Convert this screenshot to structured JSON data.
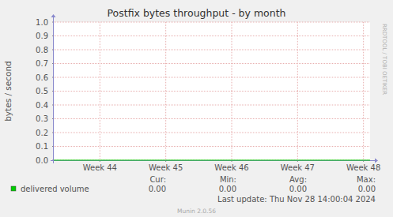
{
  "chart_data": {
    "type": "line",
    "title": "Postfix bytes throughput - by month",
    "y_label": "bytes / second",
    "x": [
      43.3,
      44,
      45,
      46,
      47,
      48,
      48.1
    ],
    "xlim": [
      43.3,
      48.1
    ],
    "xticks": [
      {
        "value": 44,
        "label": "Week 44"
      },
      {
        "value": 45,
        "label": "Week 45"
      },
      {
        "value": 46,
        "label": "Week 46"
      },
      {
        "value": 47,
        "label": "Week 47"
      },
      {
        "value": 48,
        "label": "Week 48"
      }
    ],
    "ylim": [
      0,
      1
    ],
    "yticks": [
      {
        "value": 0,
        "label": "0.0"
      },
      0.1,
      0.2,
      0.3,
      0.4,
      0.5,
      0.6,
      0.7,
      0.8,
      0.9,
      {
        "value": 1,
        "label": "1.0"
      }
    ],
    "grid": true,
    "series": [
      {
        "name": "delivered volume",
        "color": "#00cc00",
        "values": [
          0,
          0,
          0,
          0,
          0,
          0,
          0
        ],
        "stats": [
          {
            "value": 0,
            "label": "0.00"
          },
          {
            "value": 0,
            "label": "0.00"
          },
          {
            "value": 0,
            "label": "0.00"
          },
          {
            "value": 0,
            "label": "0.00"
          }
        ]
      }
    ],
    "stat_headers": [
      "Cur:",
      "Min:",
      "Avg:",
      "Max:"
    ],
    "last_update": "Last update: Thu Nov 28 14:00:04 2024",
    "footer": "Munin 2.0.56",
    "watermark": "RRDTOOL / TOBI OETIKER"
  }
}
